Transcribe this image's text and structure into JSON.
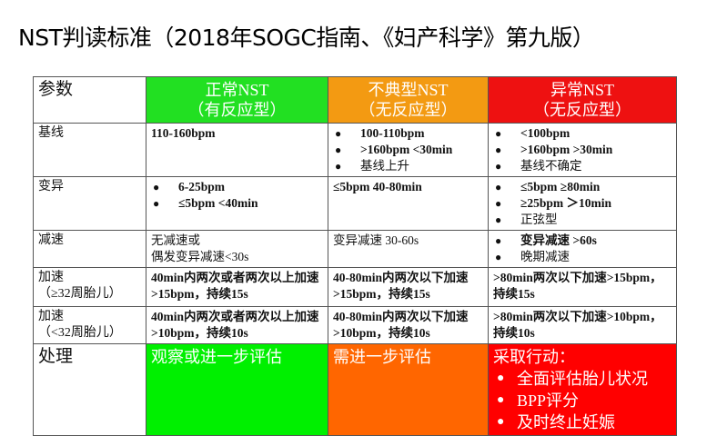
{
  "title": "NST判读标准（2018年SOGC指南、《妇产科学》第九版）",
  "colors": {
    "header_normal": "#22e022",
    "header_atypical": "#f39a12",
    "header_abnormal": "#ee1111",
    "action_normal": "#00f000",
    "action_atypical": "#ff6600",
    "action_abnormal": "#ff0000"
  },
  "header": {
    "param": "参数",
    "normal": [
      "正常NST",
      "（有反应型）"
    ],
    "atypical": [
      "不典型NST",
      "（无反应型）"
    ],
    "abnormal": [
      "异常NST",
      "（无反应型）"
    ]
  },
  "rows": [
    {
      "param": [
        "基线"
      ],
      "normal": [
        "110-160bpm"
      ],
      "normal_bullets": false,
      "atypical": [
        "100-110bpm",
        ">160bpm <30min",
        "基线上升"
      ],
      "atypical_bullets": true,
      "abnormal": [
        "<100bpm",
        ">160bpm >30min",
        "基线不确定"
      ],
      "abnormal_bullets": true
    },
    {
      "param": [
        "变异"
      ],
      "normal": [
        "6-25bpm",
        "≤5bpm <40min"
      ],
      "normal_bullets": true,
      "atypical": [
        "≤5bpm  40-80min"
      ],
      "atypical_bullets": false,
      "abnormal": [
        "≤5bpm ≥80min",
        "≥25bpm ＞10min",
        "正弦型"
      ],
      "abnormal_bullets": true
    },
    {
      "param": [
        "减速"
      ],
      "normal": [
        "无减速或",
        "偶发变异减速<30s"
      ],
      "normal_bullets": false,
      "atypical": [
        "变异减速  30-60s"
      ],
      "atypical_bullets": false,
      "abnormal": [
        "变异减速 >60s",
        "晚期减速"
      ],
      "abnormal_bullets": true
    },
    {
      "param": [
        "加速",
        "（≥32周胎儿）"
      ],
      "normal": [
        "40min内两次或者两次以上加速>15bpm，持续15s"
      ],
      "normal_bullets": false,
      "atypical": [
        "40-80min内两次以下加速>15bpm，持续15s"
      ],
      "atypical_bullets": false,
      "abnormal": [
        ">80min两次以下加速>15bpm，持续15s"
      ],
      "abnormal_bullets": false
    },
    {
      "param": [
        "加速",
        "（<32周胎儿）"
      ],
      "normal": [
        "40min内两次或者两次以上加速>10bpm，持续10s"
      ],
      "normal_bullets": false,
      "atypical": [
        "40-80min内两次以下加速>10bpm，持续10s"
      ],
      "atypical_bullets": false,
      "abnormal": [
        ">80min两次以下加速>10bpm，持续10s"
      ],
      "abnormal_bullets": false
    }
  ],
  "action": {
    "param": "处理",
    "normal": "观察或进一步评估",
    "atypical": "需进一步评估",
    "abnormal_title": "采取行动：",
    "abnormal_items": [
      "全面评估胎儿状况",
      "BPP评分",
      "及时终止妊娠"
    ]
  }
}
